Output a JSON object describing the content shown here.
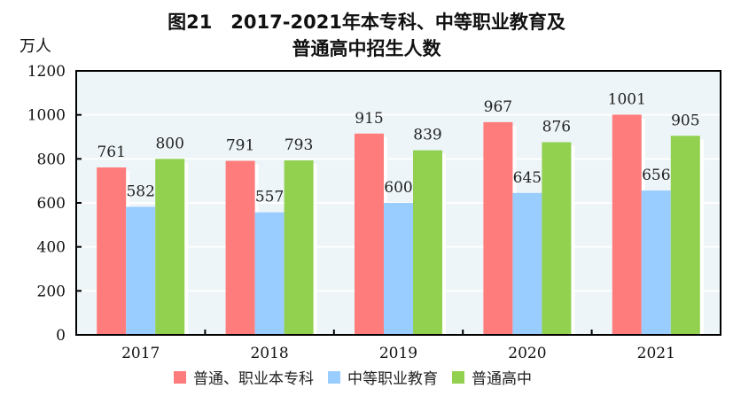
{
  "chart_data": {
    "type": "bar",
    "title_line1": "图21　2017-2021年本专科、中等职业教育及",
    "title_line2": "普通高中招生人数",
    "ylabel": "万人",
    "ylim": [
      0,
      1200
    ],
    "yticks": [
      0,
      200,
      400,
      600,
      800,
      1000,
      1200
    ],
    "grid": true,
    "legend_position": "bottom",
    "categories": [
      "2017",
      "2018",
      "2019",
      "2020",
      "2021"
    ],
    "series": [
      {
        "name": "普通、职业本专科",
        "color": "#ff7c7c",
        "values": [
          761,
          791,
          915,
          967,
          1001
        ]
      },
      {
        "name": "中等职业教育",
        "color": "#99ccff",
        "values": [
          582,
          557,
          600,
          645,
          656
        ]
      },
      {
        "name": "普通高中",
        "color": "#92d050",
        "values": [
          800,
          793,
          839,
          876,
          905
        ]
      }
    ],
    "plot_background": "#edf5f8"
  }
}
